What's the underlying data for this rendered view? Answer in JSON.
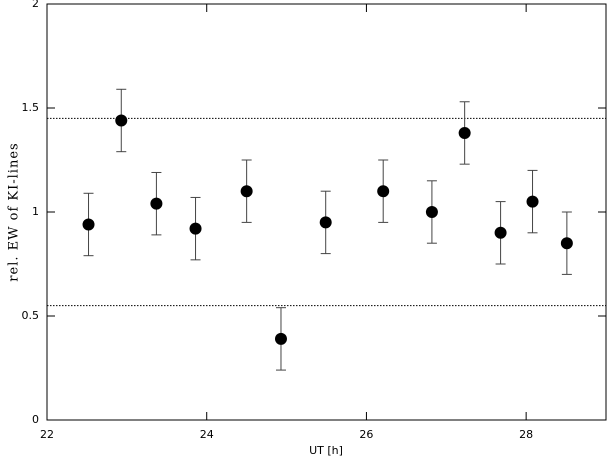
{
  "chart_data": {
    "type": "scatter",
    "x_label": "UT [h]",
    "y_label": "rel. EW of KI-lines",
    "x": [
      22.52,
      22.93,
      23.37,
      23.86,
      24.5,
      24.93,
      25.49,
      26.21,
      26.82,
      27.23,
      27.68,
      28.08,
      28.51
    ],
    "values": [
      0.94,
      1.44,
      1.04,
      0.92,
      1.1,
      0.39,
      0.95,
      1.1,
      1.0,
      1.38,
      0.9,
      1.05,
      0.85
    ],
    "errors": [
      0.15,
      0.15,
      0.15,
      0.15,
      0.15,
      0.15,
      0.15,
      0.15,
      0.15,
      0.15,
      0.15,
      0.15,
      0.15
    ],
    "color": "#000000",
    "hlines": [
      1.45,
      0.55
    ],
    "xlim": [
      22,
      29
    ],
    "ylim": [
      0,
      2
    ],
    "xticks": [
      22,
      24,
      26,
      28
    ],
    "yticks": [
      0,
      0.5,
      1,
      1.5,
      2
    ]
  }
}
